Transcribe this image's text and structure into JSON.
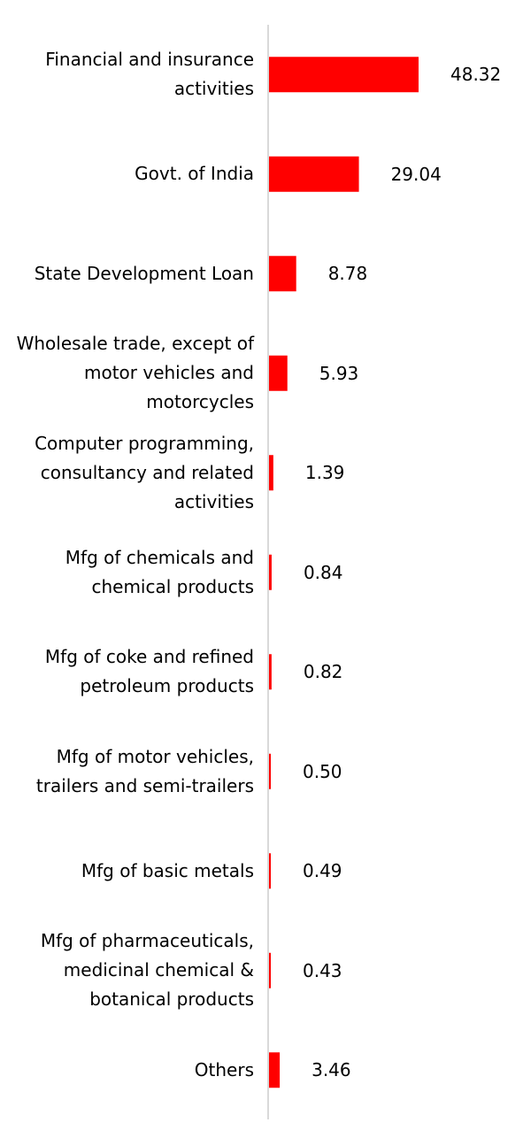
{
  "chart_data": {
    "type": "bar",
    "orientation": "horizontal",
    "categories": [
      "Financial and insurance\nactivities",
      "Govt. of India",
      "State Development Loan",
      "Wholesale trade, except of\nmotor vehicles and\nmotorcycles",
      "Computer programming,\nconsultancy and related\nactivities",
      "Mfg of chemicals and\nchemical products",
      "Mfg of coke and refined\npetroleum products",
      "Mfg of motor vehicles,\ntrailers and semi-trailers",
      "Mfg of basic metals",
      "Mfg of pharmaceuticals,\nmedicinal chemical &\nbotanical products",
      "Others"
    ],
    "values": [
      48.32,
      29.04,
      8.78,
      5.93,
      1.39,
      0.84,
      0.82,
      0.5,
      0.49,
      0.43,
      3.46
    ],
    "value_labels": [
      "48.32",
      "29.04",
      "8.78",
      "5.93",
      "1.39",
      "0.84",
      "0.82",
      "0.50",
      "0.49",
      "0.43",
      "3.46"
    ],
    "bar_color": "#ff0000",
    "axis_color": "#d9d9d9",
    "xlim": [
      0,
      48.32
    ],
    "grid": false,
    "legend": false
  }
}
